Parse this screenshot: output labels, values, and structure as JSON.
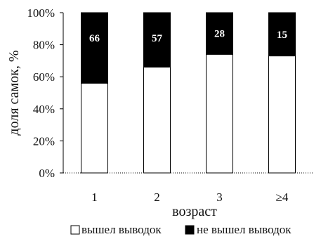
{
  "chart_data": {
    "type": "bar",
    "stacked": true,
    "percent": true,
    "categories": [
      "1",
      "2",
      "3",
      "≥4"
    ],
    "series": [
      {
        "name": "вышел выводок",
        "color": "#ffffff",
        "values": [
          56,
          66,
          74,
          73
        ]
      },
      {
        "name": "не вышел выводок",
        "color": "#000000",
        "values": [
          44,
          34,
          26,
          27
        ]
      }
    ],
    "bar_labels": [
      "66",
      "57",
      "28",
      "15"
    ],
    "ylabel": "доля самок, %",
    "xlabel": "возраст",
    "ylim": [
      0,
      100
    ],
    "y_ticks": [
      "0%",
      "20%",
      "40%",
      "60%",
      "80%",
      "100%"
    ],
    "grid": false,
    "legend": "bottom"
  }
}
